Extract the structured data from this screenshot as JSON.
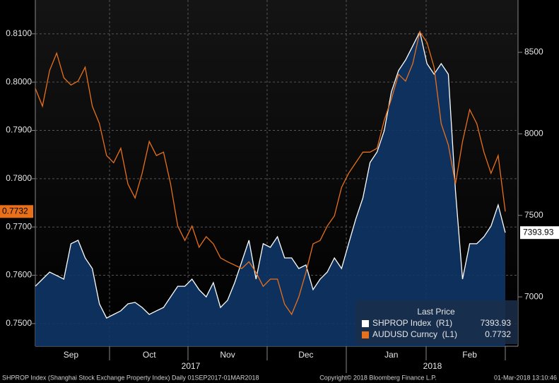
{
  "chart_data": {
    "type": "line",
    "categories": [
      null,
      null,
      null,
      null,
      null,
      "Sep",
      null,
      null,
      null,
      null,
      null,
      null,
      null,
      null,
      null,
      null,
      "Oct",
      null,
      null,
      null,
      null,
      null,
      null,
      null,
      null,
      null,
      null,
      "Nov",
      null,
      null,
      null,
      null,
      null,
      null,
      null,
      null,
      null,
      null,
      "Dec",
      null,
      null,
      null,
      null,
      null,
      null,
      null,
      null,
      null,
      null,
      null,
      "Jan",
      null,
      null,
      null,
      null,
      null,
      null,
      null,
      null,
      null,
      null,
      "Feb",
      null,
      null,
      null,
      null,
      null
    ],
    "year_labels": [
      "2017",
      "2018"
    ],
    "ylim": [
      0.7453,
      0.817
    ],
    "yticks": [
      {
        "value": 0.75,
        "label": "0.7500"
      },
      {
        "value": 0.76,
        "label": "0.7600"
      },
      {
        "value": 0.77,
        "label": "0.7700"
      },
      {
        "value": 0.78,
        "label": "0.7800"
      },
      {
        "value": 0.79,
        "label": "0.7900"
      },
      {
        "value": 0.8,
        "label": "0.8000"
      },
      {
        "value": 0.81,
        "label": "0.8100"
      }
    ],
    "y2lim": [
      6697,
      8821
    ],
    "y2ticks": [
      7000,
      7500,
      8000,
      8500
    ],
    "grid": true,
    "legend_title": "Last Price",
    "series": [
      {
        "name": "AUDUSD Curncy  (L1)",
        "color": "#e8701a",
        "axis": "y",
        "values": [
          0.7987,
          0.795,
          0.8024,
          0.806,
          0.8009,
          0.7994,
          0.8002,
          0.8031,
          0.795,
          0.7914,
          0.7848,
          0.7833,
          0.7863,
          0.7789,
          0.776,
          0.7811,
          0.7877,
          0.7848,
          0.7855,
          0.7789,
          0.7702,
          0.7672,
          0.7702,
          0.7658,
          0.768,
          0.7665,
          0.7636,
          0.7628,
          0.7621,
          0.7614,
          0.7628,
          0.7606,
          0.7577,
          0.7592,
          0.7592,
          0.754,
          0.7519,
          0.7555,
          0.7606,
          0.7665,
          0.7672,
          0.7702,
          0.7723,
          0.7782,
          0.7811,
          0.7833,
          0.7855,
          0.7855,
          0.7863,
          0.7921,
          0.7965,
          0.8016,
          0.8002,
          0.8038,
          0.8104,
          0.8082,
          0.8031,
          0.7914,
          0.787,
          0.7789,
          0.7877,
          0.7943,
          0.7914,
          0.7855,
          0.7811,
          0.7848,
          0.7732
        ]
      },
      {
        "name": "SHPROP Index  (R1)",
        "color": "#ffffff",
        "area_color": "#0e3566",
        "axis": "y2",
        "values": [
          7065,
          7109,
          7152,
          7131,
          7109,
          7326,
          7347,
          7239,
          7174,
          6957,
          6870,
          6892,
          6914,
          6957,
          6966,
          6935,
          6892,
          6914,
          6935,
          7000,
          7065,
          7065,
          7109,
          7044,
          7000,
          7087,
          6935,
          6979,
          7087,
          7217,
          7347,
          7109,
          7326,
          7304,
          7369,
          7239,
          7239,
          7174,
          7196,
          7044,
          7109,
          7152,
          7239,
          7174,
          7326,
          7477,
          7607,
          7824,
          7889,
          8019,
          8257,
          8388,
          8453,
          8539,
          8626,
          8431,
          8366,
          8431,
          8366,
          7651,
          7109,
          7326,
          7326,
          7369,
          7434,
          7564,
          7393.93
        ]
      }
    ]
  },
  "footer": {
    "left": "SHPROP Index (Shanghai Stock Exchange Property Index)  Daily 01SEP2017-01MAR2018",
    "center": "Copyright© 2018 Bloomberg Finance L.P.",
    "right": "01-Mar-2018 13:10:46"
  }
}
